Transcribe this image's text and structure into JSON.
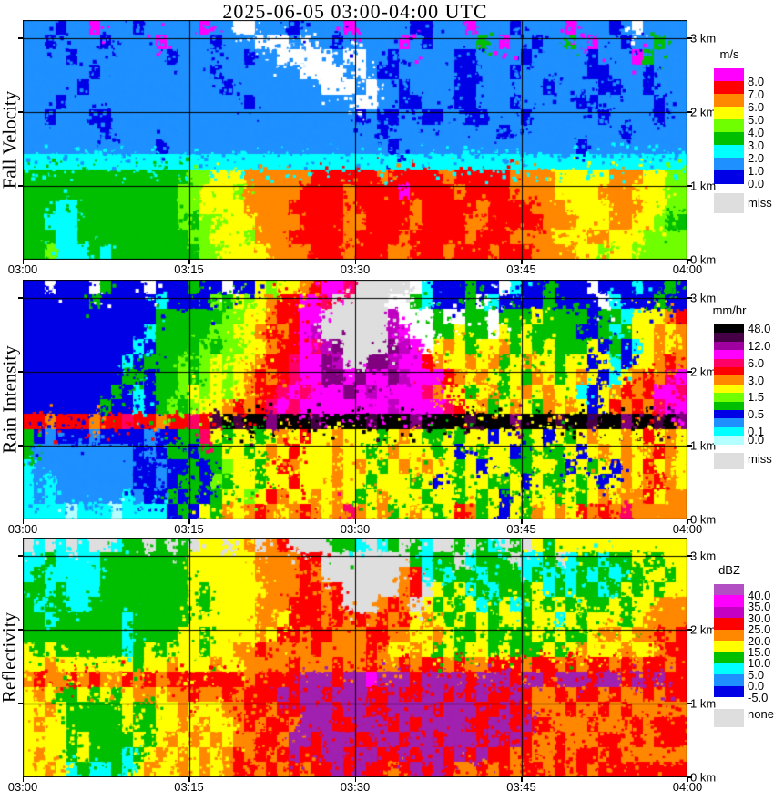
{
  "title": "2025-06-05  03:00-04:00 UTC",
  "x_axis_ticks": [
    "03:00",
    "03:15",
    "03:30",
    "03:45",
    "04:00"
  ],
  "y_axis_ticks": [
    "3 km",
    "2 km",
    "1 km",
    "0 km"
  ],
  "palette": {
    "W": "#FFFFFF",
    "G": "#DEDEDE",
    "b": "#0000E6",
    "d": "#1E90FF",
    "c": "#00FFFF",
    "C": "#B4FFFF",
    "g": "#00BE00",
    "h": "#70FF00",
    "y": "#FFFF00",
    "o": "#FF8800",
    "r": "#FF0000",
    "m": "#FF0066",
    "p": "#FF00FF",
    "P": "#C000C0",
    "v": "#800080",
    "D": "#460046",
    "k": "#000000",
    "u": "#A020B0"
  },
  "chart_data": [
    {
      "type": "heatmap",
      "panel": "Fall Velocity",
      "units": "m/s",
      "x_range": [
        "03:00",
        "04:00"
      ],
      "y_range_km": [
        0,
        3.25
      ],
      "legend": {
        "header": "m/s",
        "band_colors": [
          "#FF00FF",
          "#FF0000",
          "#FF8800",
          "#FFFF00",
          "#70FF00",
          "#00BE00",
          "#00FFFF",
          "#1E90FF",
          "#0000E6"
        ],
        "labels": [
          {
            "text": "8.0",
            "pos": 1
          },
          {
            "text": "7.0",
            "pos": 2
          },
          {
            "text": "6.0",
            "pos": 3
          },
          {
            "text": "5.0",
            "pos": 4
          },
          {
            "text": "4.0",
            "pos": 5
          },
          {
            "text": "3.0",
            "pos": 6
          },
          {
            "text": "2.0",
            "pos": 7
          },
          {
            "text": "1.0",
            "pos": 8
          },
          {
            "text": "0.0",
            "pos": 9
          }
        ],
        "missing": {
          "label": "miss",
          "color": "#DEDEDE"
        }
      },
      "grid_rows_top_to_bottom": [
        "3d1b2d1p3d1b5d1p2d2W3d1b4d1p5d2b3d1p3d1b4d1p3d1b1d1W1d",
        "2d1b4d1b4d1p4d1b3d3W1d1W2d1b5d1p1d1b4d1g1d1p2d1b2d1g1d1p2d1b2d1g1d",
        "4d1b8d1b6d1b2d5W1d2W2d1b5d2b4d1b5d1b3d1p1g1d",
        "6d1b10d1b7d4W1d1W1d2b5d2b3d1b6d2b3d1b1d",
        "5d1b12d1b8d3W1d1W2d1b4d2b6d1b4d2b2d1b1d",
        "3d1b16d1b9d2W2d2b3d2b3d1b5d2b5d1b1d",
        "2d1b3d2b22d1b1d2b2d2b2d2b3d1b6d1b4d1b2d",
        "7d1b24d1b10d1b10d1b4d",
        "12d1b20d1b16d1b8d",
        "60c",
        "15g2h3y6o6r1o5r1o5r4o5y3o2y2h",
        "14g2h3y1h5o4r1o4r1p4r1o4r4o4y3o3y2h",
        "3g2c9g2h4y4o5r1o5r1o5r1o4r3o4y3o2y2h",
        "2g3c9g1h1g2h3y4o4r2o4r1o4r2o5r3o3y2o2y1h1g",
        "3g2c10g2h3y1h3o5r1o4r1o5r1o3r4o3y2o3y2h",
        "2g1h3c1g1c8g2h4y4o3r1o3r2o3r1o3r1o3r4o2y1h2y2h"
      ]
    },
    {
      "type": "heatmap",
      "panel": "Rain Intensity",
      "units": "mm/hr",
      "x_range": [
        "03:00",
        "04:00"
      ],
      "y_range_km": [
        0,
        3.25
      ],
      "legend": {
        "header": "mm/hr",
        "band_colors": [
          "#000000",
          "#460046",
          "#A000A0",
          "#FF00FF",
          "#FF0066",
          "#FF0000",
          "#FF8800",
          "#FFFF00",
          "#70FF00",
          "#00BE00",
          "#0000E6",
          "#1E90FF",
          "#00FFFF",
          "#B4FFFF"
        ],
        "labels": [
          {
            "text": "48.0",
            "pos": 0.5
          },
          {
            "text": "12.0",
            "pos": 2.5
          },
          {
            "text": "6.0",
            "pos": 4.5
          },
          {
            "text": "3.0",
            "pos": 6.5
          },
          {
            "text": "1.5",
            "pos": 8.5
          },
          {
            "text": "0.5",
            "pos": 10.5
          },
          {
            "text": "0.1",
            "pos": 12.5
          },
          {
            "text": "0.0",
            "pos": 13.5
          }
        ],
        "missing": {
          "label": "miss",
          "color": "#DEDEDE"
        }
      },
      "grid_rows_top_to_bottom": [
        "2b1W3b1W1g3b1W3b1g2b1W2b1y1h2y1o1r2p1m5G1W1c3b1g2b1W1c2b1g3b1W3b1c2b1g1b",
        "6b1g5b1c4b1h1g1y1h1y1o2r2p1m5G2W1g1c3b1g1W1c4b1g4b1W1c3b1g2b",
        "12b6g2h2y1o2r2p6G1P3W1g2W2g1W3g1y4g1b2g1c3y1o1r",
        "11b1c5g2h2y1o1r1o1r1p1P6G1P1p2W2g1y2g1W1y1g1y4g2b1g1c1g2y1o1y1o1r1o",
        "10b1c1b4g1h1g2h2y1o2r1p1m1P1v4G1v1P1p1W1y1o1y1g2y1o1g1y1g1y3g1y1b1g1b1c1y1o1y2o1r1o1r",
        "9b1c1b3g1h1g1h1y1h2y1o2r1m2p1v1P2G2v1P2p1r1o2y1o1y1o1g1y1o2y1g2y1b1y1c1b2y1o1r2o2r1p",
        "9b2g1b2g1h1g1h1y1h1y1o1r1o1r1m2p2v1p1v2p1v1P3p1r1o1y1o1y1g1y1g1o1y1g1y1o1y1b1c1y1o1r1o1m1p1r1o1p1m",
        "8b1g1b1c1b2g1h1y1h1y1h1y1o2r1m1p1m3p1v1p1P4p1m1o2y1g1y1o1g1y1o1y1o2y1c1b1y1o1r1o1r2p1m1p",
        "7b1g2b1c1b1g1h1g1h2y1o1r1o1r1m1p1m8p1P4p1m1r1y1o1g1y1o1y1g1o1y1o1y1b1y1r1o1r1o1m4p1m",
        "2r1o3r1o2r1m2r1o2r1m1r1D1k1D2k1v3k1D4k1D3k1v4k1D3k1v3k1D2k1D2k1v2k1D1k1v1k1D1k",
        "1g1b1d3b1d4b1d2b2g1m1y1g2y1g1y1o1y1r2y1o3y1g1y1o1y2g1y1g2y1b2y1g1y1b1y1g1y1o2y1o1y1r1y1o1y",
        "1g9d1b1d1b2g1b2g2y1g1y1o1y1r3y1o2y1g1y1o3y1g1y1b1y1g2y1b1g1y2g1y1b1y1o1y1o1y1o1r1o1y",
        "1c9d2b1d2b1g1b1g1h2y1g1y1r1o3y1o1y1o1y1g1y1o1y1o2y1g1y1b2y2g2y1g1b1y1g1y1b1o1y1r1y1o1y1o",
        "1c1d1c7d2b1d1b2g1b1h1g2y1g2y1r3y1o2y1g3y1g1y1b1y1g2y2g1y1b1y2g1y1g1y1b1y1o1y1o1r1o1y1o",
        "1c1d1c6d1c1d2b1g1b1g1b1g2y1h1y1r1o2y1o1y1o1y1g1y1o3y1g2y1g1y1g1y1b1y1g2y1g1y1g1y1o1y2o1r1y1o",
        "4c1C3c1C4c1b1g1b1y1g1o1y1o1r1o1y1o1r1o1y1o1m1o1y1o1g1y1o1y1g1y1r1o1g1y1b1y1g1o1y1o1y1r1o1r1o1m1o"
      ]
    },
    {
      "type": "heatmap",
      "panel": "Reflectivity",
      "units": "dBZ",
      "x_range": [
        "03:00",
        "04:00"
      ],
      "y_range_km": [
        0,
        3.25
      ],
      "legend": {
        "header": "dBZ",
        "band_colors": [
          "#B14FC3",
          "#FF00FF",
          "#C400C4",
          "#FF0000",
          "#FF8800",
          "#FFFF00",
          "#00BE00",
          "#00FFFF",
          "#1E90FF",
          "#0000E6"
        ],
        "labels": [
          {
            "text": "40.0",
            "pos": 1
          },
          {
            "text": "35.0",
            "pos": 2
          },
          {
            "text": "30.0",
            "pos": 3
          },
          {
            "text": "25.0",
            "pos": 4
          },
          {
            "text": "20.0",
            "pos": 5
          },
          {
            "text": "15.0",
            "pos": 6
          },
          {
            "text": "10.0",
            "pos": 7
          },
          {
            "text": "5.0",
            "pos": 8
          },
          {
            "text": "0.0",
            "pos": 9
          },
          {
            "text": "-5.0",
            "pos": 10
          }
        ],
        "missing": {
          "label": "none",
          "color": "#DEDEDE"
        }
      },
      "grid_rows_top_to_bottom": [
        "1G1c1G1c1G1c2G1c2g1G1g1G1g1G2y1G1y1o1G1o1r4G2g1c1G1c1g1G1g1c2G1g1G1g1c1G1g1G1y1g1y",
        "2c1g4c8g6y4o2r8G1g1c2g1G1c3g1G2c1g1G1c2g1c2g1y2g1y",
        "1c1g5c8g6y4o1r1o7G1o1r1c1g1c2g1c3g1c1g1c1g1c1g1c1g1c2g2y1g1y1o",
        "2g1c1g3c8g1y1g5y3o2r1o1r5G1o1r1G1y1g1y1c1g1c3g1y1c1g1c2g1c1g1y1g1y1g2y1o1y1o",
        "1g1c2g2c9g1y1g4y3o3r1o1r3G1o1r1o1G1y1g1y1g1y1c1g1y1c1g1y1g1y1g1y2g1y1g2y3o1y1o",
        "2g1c6g1c5g6y2o1y3r1o1r1o1r1o1r1o1r1y1o1y1g1y1g1y1g2y1g2y1c1y1g3y1g1y4o1r2o1y",
        "9g1c4g2y1g4y1o1y2r1o2r3o2r2o2y1o1y2g1y4g1y1g1y2g1y2o1y2o1r1o1r1o1y1o",
        "1y1g1y6g1c1g1y1g3y1g2y2o1r4o1r4o1r1o2y1o1y1g1y1g2y1g1y3g1y1g1y1o3y1o2y1o2r2o1y1o",
        "2y1o7y1g2y1o3y1o2y4o1r3o1r2o1r2o1r1o2r1o1r2o3r1o2r1o1r1o2r1o1r1o2r1o1r1o1r1o",
        "1o1r2o1r1o1r2o1r1o1r1o1r6r1o4r3u1r2u1p3u1r4u1r3u1r2u1r3u1r2u1r1u1r1u1r",
        "1y1o1y2g1y1g1y1g1y2o1y2o1r2o1r1o3r1u1r2u1r3u2r1u2r2u1r1u1r1u2r1u1r2o1r1o2r1o1r2o1r1o1r",
        "2y1o1y5g1y2g2y1o3y2o2r1o2r3u1r2u2r4u1r3u2r1u2r3o1r2o1r1o1r1o",
        "1y1o2y5g1y2g2y1o1y1o2y1o1r1o2r1o3u2r3u1r1u1r4u2r2u1r1u2r3o1r3o1r1o2r",
        "4y1g1y4g1y1g1y1o1y1o1y1o1y2o2r1o2u1r3u2r2u1r2u1r3u1r1u1r1u1r2o1r3o2r1o1r1o1r",
        "1y1o2y1g1y3g1c1g1y1o1y1o1y1o1y1o1r1o1r1o1r1u2r2u1r2u2r1u1r2u1r1u1r1u2r1o1r2o1r1o2r1o1r2o",
        "2y1o1y1c1g2c1g1c1y1o2y1o1y1o1y1o2r1o1r1o1r1o2r1u1r1u2r1o1r1u1r1u1r2o1r1o1r1o2r1o1r1o1r1o1r"
      ]
    }
  ]
}
